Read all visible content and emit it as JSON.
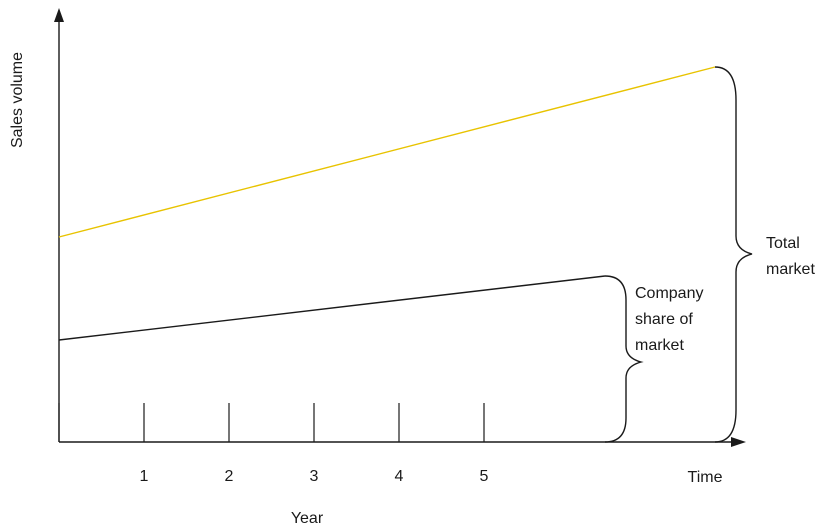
{
  "chart_data": {
    "type": "line",
    "title": "",
    "ylabel": "Sales volume",
    "xlabel": "Year",
    "x_axis_end_label": "Time",
    "x_ticks": [
      "1",
      "2",
      "3",
      "4",
      "5"
    ],
    "series": [
      {
        "label": "Total market",
        "color": "#e8c300"
      },
      {
        "label": "Company share of market",
        "color": "#1a1a1a"
      }
    ],
    "annotations": {
      "total_market": [
        "Total",
        "market"
      ],
      "company_share": [
        "Company",
        "share of",
        "market"
      ]
    }
  }
}
